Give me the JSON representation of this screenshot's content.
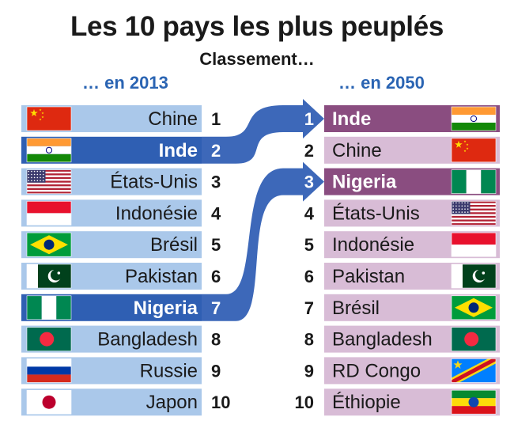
{
  "header": {
    "title": "Les 10 pays les plus peuplés",
    "subtitle": "Classement…"
  },
  "chart_data": {
    "type": "table",
    "left_label": "… en 2013",
    "right_label": "… en 2050",
    "left_ranking": [
      {
        "rank": "1",
        "country": "Chine",
        "flag": "china-flag"
      },
      {
        "rank": "2",
        "country": "Inde",
        "flag": "india-flag",
        "highlight": true
      },
      {
        "rank": "3",
        "country": "États-Unis",
        "flag": "usa-flag"
      },
      {
        "rank": "4",
        "country": "Indonésie",
        "flag": "indonesia-flag"
      },
      {
        "rank": "5",
        "country": "Brésil",
        "flag": "brazil-flag"
      },
      {
        "rank": "6",
        "country": "Pakistan",
        "flag": "pakistan-flag"
      },
      {
        "rank": "7",
        "country": "Nigeria",
        "flag": "nigeria-flag",
        "highlight": true
      },
      {
        "rank": "8",
        "country": "Bangladesh",
        "flag": "bangladesh-flag"
      },
      {
        "rank": "9",
        "country": "Russie",
        "flag": "russia-flag"
      },
      {
        "rank": "10",
        "country": "Japon",
        "flag": "japan-flag"
      }
    ],
    "right_ranking": [
      {
        "rank": "1",
        "country": "Inde",
        "flag": "india-flag",
        "highlight": true
      },
      {
        "rank": "2",
        "country": "Chine",
        "flag": "china-flag"
      },
      {
        "rank": "3",
        "country": "Nigeria",
        "flag": "nigeria-flag",
        "highlight": true
      },
      {
        "rank": "4",
        "country": "États-Unis",
        "flag": "usa-flag"
      },
      {
        "rank": "5",
        "country": "Indonésie",
        "flag": "indonesia-flag"
      },
      {
        "rank": "6",
        "country": "Pakistan",
        "flag": "pakistan-flag"
      },
      {
        "rank": "7",
        "country": "Brésil",
        "flag": "brazil-flag"
      },
      {
        "rank": "8",
        "country": "Bangladesh",
        "flag": "bangladesh-flag"
      },
      {
        "rank": "9",
        "country": "RD Congo",
        "flag": "drcongo-flag"
      },
      {
        "rank": "10",
        "country": "Éthiopie",
        "flag": "ethiopia-flag"
      }
    ],
    "arrows": [
      {
        "from_rank": "2",
        "to_rank": "1",
        "country": "Inde"
      },
      {
        "from_rank": "7",
        "to_rank": "3",
        "country": "Nigeria"
      }
    ],
    "colors": {
      "left_row": "#aac8ea",
      "right_row": "#d8bcd6",
      "left_highlight": "#2f5fb3",
      "right_highlight": "#8a4d80",
      "arrow": "#3d68b9",
      "heading": "#2a64b3"
    }
  }
}
